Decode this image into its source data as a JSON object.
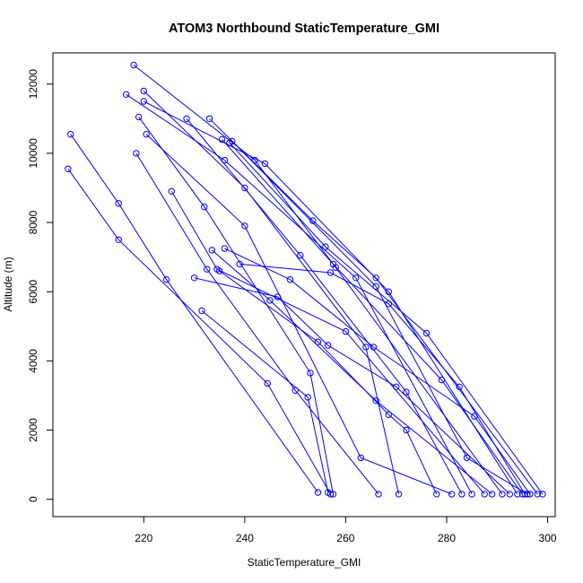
{
  "chart_data": {
    "type": "line",
    "title": "ATOM3 Northbound StaticTemperature_GMI",
    "xlabel": "StaticTemperature_GMI",
    "ylabel": "Altitude (m)",
    "xlim": [
      202,
      301.5
    ],
    "ylim": [
      -500,
      12900
    ],
    "xticks": [
      220,
      240,
      260,
      280,
      300
    ],
    "yticks": [
      0,
      2000,
      4000,
      6000,
      8000,
      10000,
      12000
    ],
    "grid": false,
    "color": "#0000ff",
    "marker": "open-circle",
    "series": [
      {
        "points": [
          [
            205.5,
            10550
          ],
          [
            215.0,
            8550
          ],
          [
            224.5,
            6350
          ],
          [
            254.5,
            200
          ]
        ]
      },
      {
        "points": [
          [
            205.0,
            9550
          ],
          [
            215.0,
            7500
          ],
          [
            244.5,
            3350
          ],
          [
            257.0,
            150
          ]
        ]
      },
      {
        "points": [
          [
            218.0,
            12550
          ],
          [
            242.0,
            9800
          ],
          [
            258.0,
            6700
          ],
          [
            291.0,
            150
          ]
        ]
      },
      {
        "points": [
          [
            216.5,
            11700
          ],
          [
            236.0,
            9800
          ],
          [
            262.0,
            6400
          ],
          [
            285.0,
            150
          ]
        ]
      },
      {
        "points": [
          [
            220.0,
            11800
          ],
          [
            240.0,
            9000
          ],
          [
            264.0,
            4400
          ],
          [
            270.5,
            150
          ]
        ]
      },
      {
        "points": [
          [
            220.0,
            11500
          ],
          [
            244.0,
            9700
          ],
          [
            268.5,
            6000
          ],
          [
            294.0,
            150
          ]
        ]
      },
      {
        "points": [
          [
            219.0,
            11050
          ],
          [
            232.0,
            8450
          ],
          [
            253.0,
            3650
          ],
          [
            257.5,
            150
          ]
        ]
      },
      {
        "points": [
          [
            220.5,
            10550
          ],
          [
            240.0,
            7900
          ],
          [
            263.0,
            1200
          ],
          [
            281.0,
            150
          ]
        ]
      },
      {
        "points": [
          [
            218.5,
            10000
          ],
          [
            232.5,
            6650
          ],
          [
            250.0,
            3150
          ],
          [
            266.5,
            150
          ]
        ]
      },
      {
        "points": [
          [
            225.5,
            8900
          ],
          [
            234.5,
            6650
          ],
          [
            260.0,
            4850
          ],
          [
            287.5,
            150
          ]
        ]
      },
      {
        "points": [
          [
            228.5,
            11000
          ],
          [
            251.0,
            7050
          ],
          [
            272.0,
            3100
          ],
          [
            283.0,
            150
          ]
        ]
      },
      {
        "points": [
          [
            233.0,
            11000
          ],
          [
            253.5,
            8050
          ],
          [
            266.0,
            6400
          ],
          [
            298.0,
            150
          ]
        ]
      },
      {
        "points": [
          [
            235.5,
            10400
          ],
          [
            257.5,
            6800
          ],
          [
            279.0,
            3450
          ],
          [
            295.0,
            150
          ]
        ]
      },
      {
        "points": [
          [
            237.0,
            10300
          ],
          [
            256.0,
            7300
          ],
          [
            276.0,
            4800
          ],
          [
            299.0,
            150
          ]
        ]
      },
      {
        "points": [
          [
            237.5,
            10350
          ],
          [
            266.0,
            6150
          ],
          [
            284.0,
            1200
          ],
          [
            296.0,
            150
          ]
        ]
      },
      {
        "points": [
          [
            231.5,
            5450
          ],
          [
            252.5,
            2950
          ],
          [
            256.5,
            200
          ]
        ]
      },
      {
        "points": [
          [
            230.0,
            6400
          ],
          [
            246.5,
            5850
          ],
          [
            256.5,
            4450
          ],
          [
            270.0,
            3250
          ],
          [
            292.5,
            150
          ]
        ]
      },
      {
        "points": [
          [
            233.5,
            7200
          ],
          [
            245.0,
            5750
          ],
          [
            266.0,
            2850
          ],
          [
            289.0,
            150
          ]
        ]
      },
      {
        "points": [
          [
            236.0,
            7250
          ],
          [
            249.0,
            6350
          ],
          [
            265.5,
            4400
          ],
          [
            285.5,
            2400
          ],
          [
            296.5,
            150
          ]
        ]
      },
      {
        "points": [
          [
            239.0,
            6800
          ],
          [
            257.0,
            6550
          ],
          [
            268.5,
            5650
          ],
          [
            282.5,
            3250
          ],
          [
            295.5,
            150
          ]
        ]
      },
      {
        "points": [
          [
            235.0,
            6600
          ],
          [
            254.5,
            4550
          ],
          [
            268.5,
            2450
          ],
          [
            272.0,
            2000
          ],
          [
            278.0,
            150
          ]
        ]
      }
    ]
  }
}
